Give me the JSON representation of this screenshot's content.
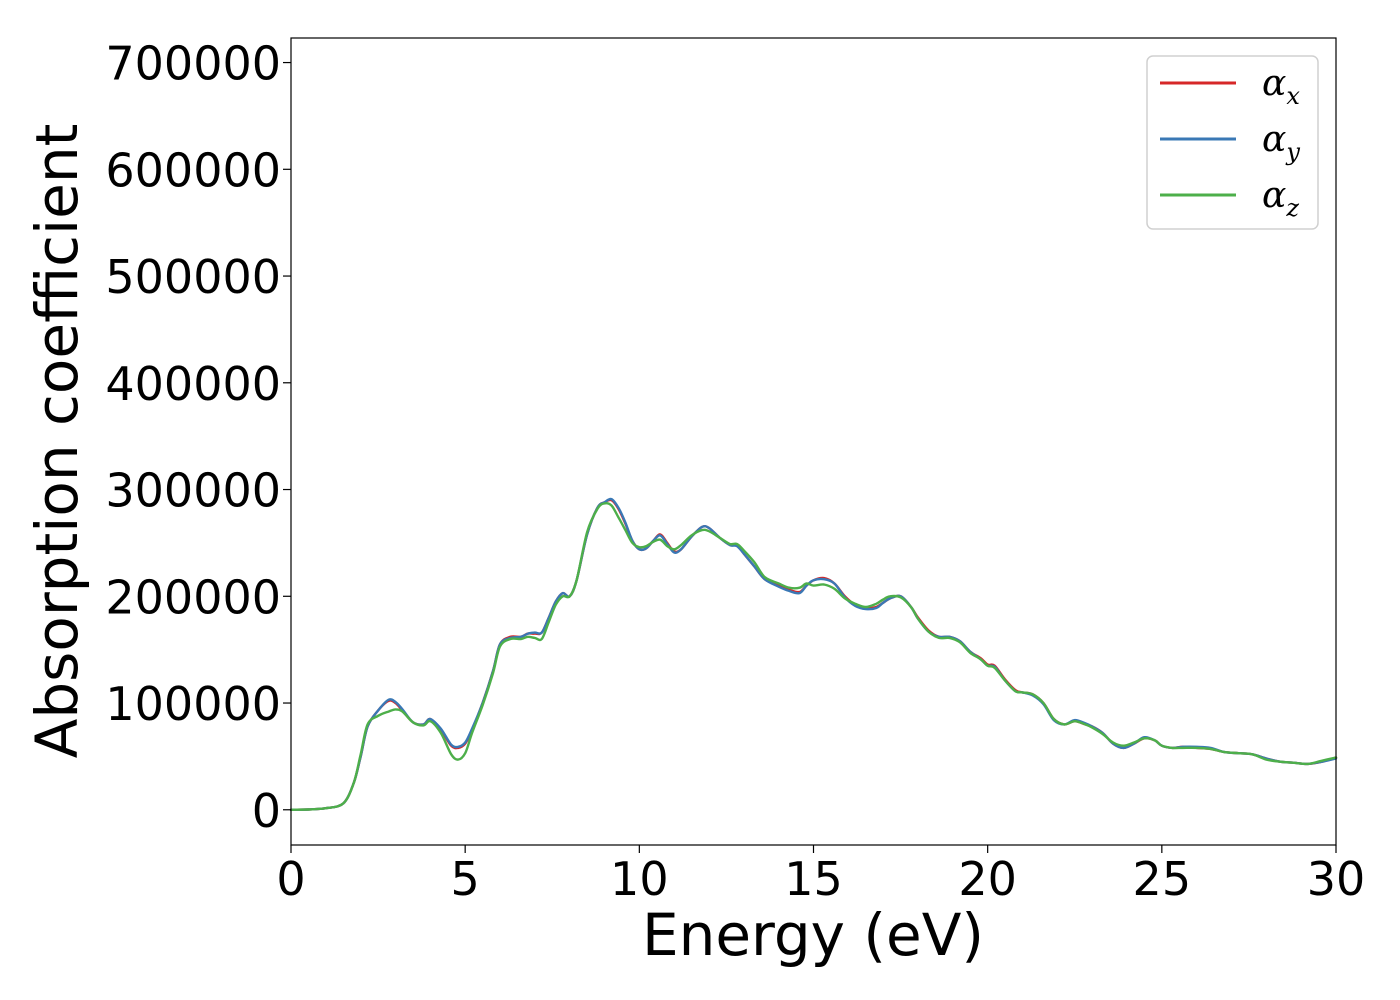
{
  "chart_data": {
    "type": "line",
    "xlabel": "Energy (eV)",
    "ylabel": "Absorption coefficient",
    "xlim": [
      0,
      30
    ],
    "ylim": [
      -33000,
      723000
    ],
    "xticks": [
      0,
      5,
      10,
      15,
      20,
      25,
      30
    ],
    "yticks": [
      0,
      100000,
      200000,
      300000,
      400000,
      500000,
      600000,
      700000
    ],
    "xtick_labels": [
      "0",
      "5",
      "10",
      "15",
      "20",
      "25",
      "30"
    ],
    "ytick_labels": [
      "0",
      "100000",
      "200000",
      "300000",
      "400000",
      "500000",
      "600000",
      "700000"
    ],
    "grid": false,
    "legend_position": "top-right",
    "series": [
      {
        "name": "α",
        "subscript": "x",
        "color": "#d62728",
        "x": [
          0,
          0.5,
          1,
          1.5,
          1.8,
          2,
          2.2,
          2.5,
          2.8,
          3,
          3.2,
          3.5,
          3.8,
          4,
          4.3,
          4.6,
          4.8,
          5,
          5.2,
          5.5,
          5.8,
          6,
          6.3,
          6.6,
          6.8,
          7,
          7.2,
          7.4,
          7.6,
          7.8,
          8,
          8.2,
          8.5,
          8.8,
          9,
          9.2,
          9.4,
          9.6,
          9.8,
          10,
          10.2,
          10.4,
          10.6,
          10.8,
          11,
          11.2,
          11.5,
          11.8,
          12,
          12.3,
          12.6,
          12.8,
          13,
          13.3,
          13.6,
          14,
          14.3,
          14.6,
          14.8,
          15,
          15.3,
          15.6,
          15.9,
          16.2,
          16.5,
          16.8,
          17,
          17.2,
          17.5,
          17.8,
          18,
          18.3,
          18.6,
          18.9,
          19.2,
          19.5,
          19.8,
          20,
          20.2,
          20.5,
          20.8,
          21,
          21.3,
          21.6,
          21.9,
          22.2,
          22.5,
          22.8,
          23,
          23.3,
          23.6,
          23.9,
          24.2,
          24.5,
          24.8,
          25,
          25.3,
          25.6,
          26,
          26.4,
          26.8,
          27.2,
          27.6,
          28,
          28.4,
          28.8,
          29.2,
          29.6,
          30
        ],
        "values": [
          0,
          300,
          1500,
          6000,
          25000,
          50000,
          78000,
          93000,
          102000,
          100000,
          93000,
          82000,
          80000,
          85000,
          75000,
          60000,
          58000,
          62000,
          75000,
          100000,
          130000,
          155000,
          162000,
          162000,
          165000,
          165000,
          166000,
          180000,
          195000,
          203000,
          200000,
          215000,
          258000,
          283000,
          288000,
          290000,
          282000,
          268000,
          252000,
          244000,
          245000,
          252000,
          258000,
          250000,
          242000,
          244000,
          256000,
          265000,
          264000,
          255000,
          248000,
          248000,
          240000,
          228000,
          216000,
          210000,
          206000,
          204000,
          210000,
          215000,
          217000,
          212000,
          200000,
          192000,
          189000,
          190000,
          194000,
          198000,
          200000,
          190000,
          180000,
          168000,
          162000,
          162000,
          158000,
          148000,
          142000,
          136000,
          135000,
          122000,
          112000,
          110000,
          108000,
          100000,
          85000,
          80000,
          83000,
          80000,
          78000,
          72000,
          62000,
          58000,
          62000,
          67000,
          65000,
          60000,
          58000,
          59000,
          58000,
          57000,
          54000,
          53000,
          52000,
          48000,
          45000,
          44000,
          43000,
          45000,
          49000
        ]
      },
      {
        "name": "α",
        "subscript": "y",
        "color": "#3a78b5",
        "x": [
          0,
          0.5,
          1,
          1.5,
          1.8,
          2,
          2.2,
          2.5,
          2.8,
          3,
          3.2,
          3.5,
          3.8,
          4,
          4.3,
          4.6,
          4.8,
          5,
          5.2,
          5.5,
          5.8,
          6,
          6.3,
          6.6,
          6.8,
          7,
          7.2,
          7.4,
          7.6,
          7.8,
          8,
          8.2,
          8.5,
          8.8,
          9,
          9.2,
          9.4,
          9.6,
          9.8,
          10,
          10.2,
          10.4,
          10.6,
          10.8,
          11,
          11.2,
          11.5,
          11.8,
          12,
          12.3,
          12.6,
          12.8,
          13,
          13.3,
          13.6,
          14,
          14.3,
          14.6,
          14.8,
          15,
          15.3,
          15.6,
          15.9,
          16.2,
          16.5,
          16.8,
          17,
          17.2,
          17.5,
          17.8,
          18,
          18.3,
          18.6,
          18.9,
          19.2,
          19.5,
          19.8,
          20,
          20.2,
          20.5,
          20.8,
          21,
          21.3,
          21.6,
          21.9,
          22.2,
          22.5,
          22.8,
          23,
          23.3,
          23.6,
          23.9,
          24.2,
          24.5,
          24.8,
          25,
          25.3,
          25.6,
          26,
          26.4,
          26.8,
          27.2,
          27.6,
          28,
          28.4,
          28.8,
          29.2,
          29.6,
          30
        ],
        "values": [
          0,
          300,
          1500,
          6000,
          25000,
          50000,
          78000,
          93000,
          103000,
          101000,
          94000,
          82000,
          80000,
          85000,
          76000,
          61000,
          59000,
          63000,
          76000,
          100000,
          130000,
          155000,
          161000,
          162000,
          165000,
          166000,
          166000,
          180000,
          195000,
          203000,
          200000,
          215000,
          258000,
          283000,
          288000,
          291000,
          283000,
          269000,
          252000,
          244000,
          245000,
          252000,
          257000,
          249000,
          241000,
          244000,
          256000,
          265000,
          264000,
          255000,
          248000,
          247000,
          240000,
          228000,
          216000,
          209000,
          205000,
          203000,
          210000,
          215000,
          216000,
          212000,
          199000,
          191000,
          188000,
          189000,
          194000,
          198000,
          200000,
          190000,
          179000,
          167000,
          162000,
          162000,
          158000,
          148000,
          141000,
          135000,
          134000,
          121000,
          111000,
          110000,
          107000,
          99000,
          84000,
          80000,
          84000,
          81000,
          78000,
          72000,
          62000,
          58000,
          62000,
          68000,
          65000,
          60000,
          58000,
          59000,
          59000,
          58000,
          54000,
          53000,
          52000,
          48000,
          45000,
          44000,
          43000,
          45000,
          48000
        ]
      },
      {
        "name": "α",
        "subscript": "z",
        "color": "#4daf4a",
        "x": [
          0,
          0.5,
          1,
          1.5,
          1.8,
          2,
          2.2,
          2.5,
          2.8,
          3,
          3.2,
          3.5,
          3.8,
          4,
          4.3,
          4.6,
          4.8,
          5,
          5.2,
          5.5,
          5.8,
          6,
          6.3,
          6.6,
          6.8,
          7,
          7.2,
          7.4,
          7.6,
          7.8,
          8,
          8.2,
          8.5,
          8.8,
          9,
          9.2,
          9.4,
          9.6,
          9.8,
          10,
          10.2,
          10.4,
          10.6,
          10.8,
          11,
          11.2,
          11.5,
          11.8,
          12,
          12.3,
          12.6,
          12.8,
          13,
          13.3,
          13.6,
          14,
          14.3,
          14.6,
          14.8,
          15,
          15.3,
          15.6,
          15.9,
          16.2,
          16.5,
          16.8,
          17,
          17.2,
          17.5,
          17.8,
          18,
          18.3,
          18.6,
          18.9,
          19.2,
          19.5,
          19.8,
          20,
          20.2,
          20.5,
          20.8,
          21,
          21.3,
          21.6,
          21.9,
          22.2,
          22.5,
          22.8,
          23,
          23.3,
          23.6,
          23.9,
          24.2,
          24.5,
          24.8,
          25,
          25.3,
          25.6,
          26,
          26.4,
          26.8,
          27.2,
          27.6,
          28,
          28.4,
          28.8,
          29.2,
          29.6,
          30
        ],
        "values": [
          0,
          300,
          1500,
          6000,
          25000,
          52000,
          80000,
          88000,
          92000,
          94000,
          92000,
          82000,
          79000,
          83000,
          72000,
          52000,
          47000,
          53000,
          72000,
          98000,
          128000,
          153000,
          160000,
          160000,
          162000,
          161000,
          160000,
          176000,
          192000,
          200000,
          200000,
          215000,
          260000,
          282000,
          287000,
          285000,
          274000,
          262000,
          250000,
          246000,
          247000,
          251000,
          253000,
          247000,
          244000,
          248000,
          257000,
          262000,
          261000,
          255000,
          249000,
          249000,
          243000,
          232000,
          218000,
          212000,
          208000,
          208000,
          212000,
          210000,
          211000,
          207000,
          198000,
          193000,
          190000,
          193000,
          197000,
          200000,
          199000,
          190000,
          179000,
          167000,
          161000,
          161000,
          157000,
          147000,
          141000,
          135000,
          133000,
          121000,
          111000,
          110000,
          108000,
          100000,
          85000,
          80000,
          83000,
          80000,
          77000,
          71000,
          63000,
          60000,
          63000,
          67000,
          65000,
          60000,
          58000,
          58000,
          58000,
          57000,
          54000,
          53000,
          52000,
          47000,
          45000,
          44000,
          43000,
          46000,
          49000
        ]
      }
    ]
  }
}
